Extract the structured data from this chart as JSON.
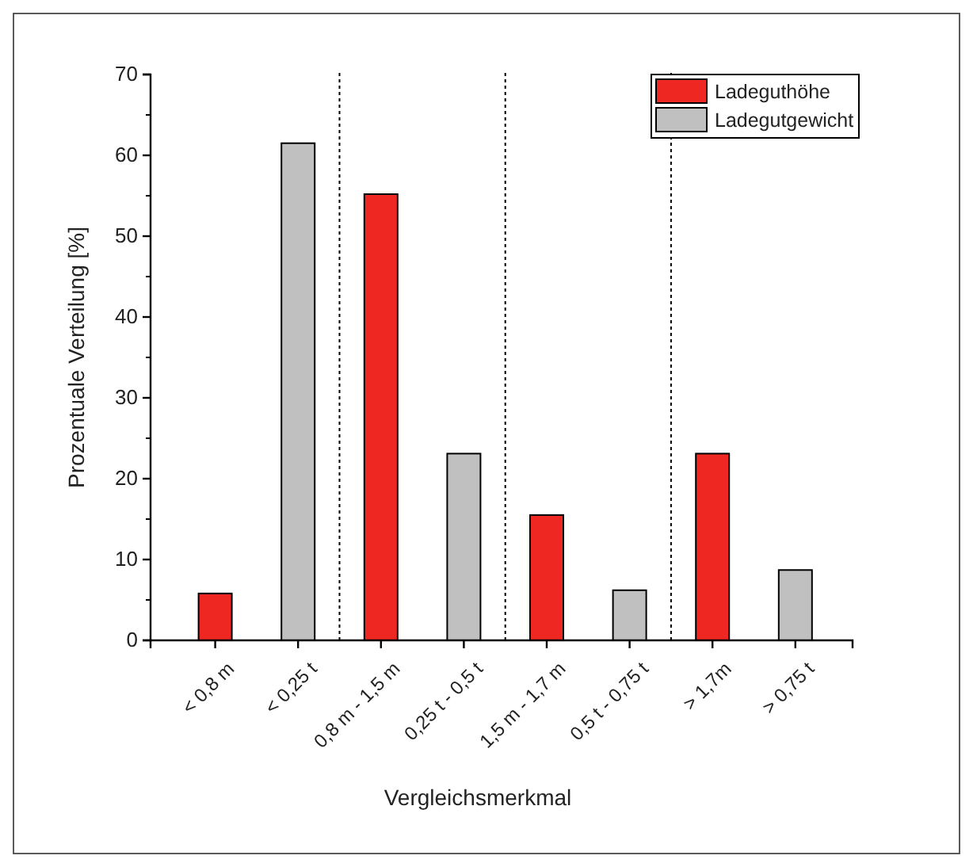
{
  "chart_data": {
    "type": "bar",
    "xlabel": "Vergleichsmerkmal",
    "ylabel": "Prozentuale Verteilung [%]",
    "categories": [
      "< 0,8 m",
      "< 0,25 t",
      "0,8 m - 1,5 m",
      "0,25 t - 0,5 t",
      "1,5 m - 1,7 m",
      "0,5 t - 0,75 t",
      "> 1,7m",
      "> 0,75 t"
    ],
    "series": [
      {
        "name": "Ladeguthöhe",
        "color": "#ee2722",
        "values": [
          5.8,
          null,
          55.2,
          null,
          15.5,
          null,
          23.1,
          null
        ]
      },
      {
        "name": "Ladegutgewicht",
        "color": "#c0c0c0",
        "values": [
          null,
          61.5,
          null,
          23.1,
          null,
          6.2,
          null,
          8.7
        ]
      }
    ],
    "ylim": [
      0,
      70
    ],
    "yticks": [
      0,
      10,
      20,
      30,
      40,
      50,
      60,
      70
    ],
    "legend": "top right"
  }
}
